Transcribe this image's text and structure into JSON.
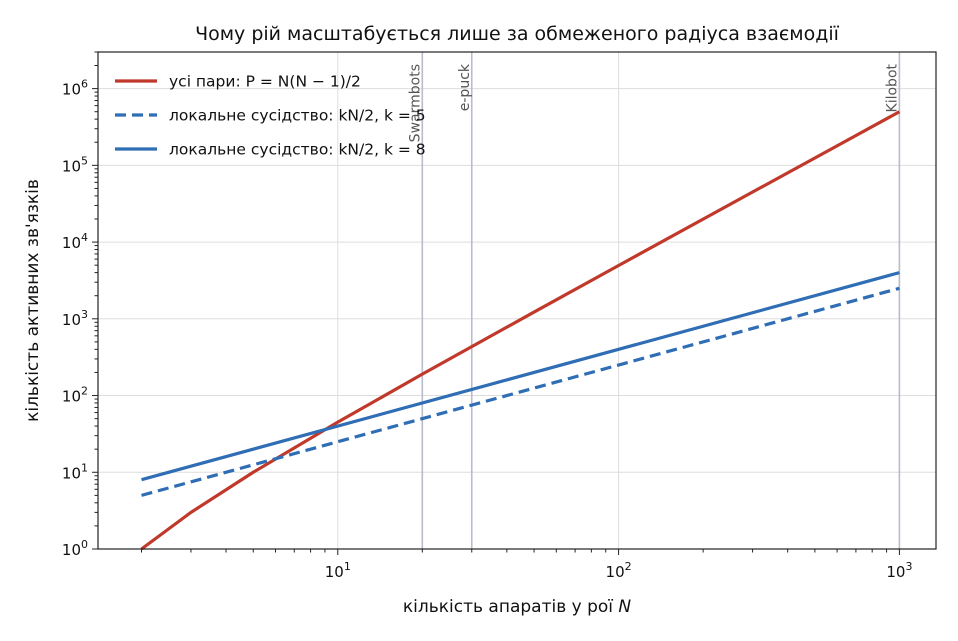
{
  "chart_data": {
    "type": "line",
    "title": "Чому рій масштабується лише за обмеженого радіуса взаємодії",
    "xlabel": "кількість апаратів у рої N",
    "ylabel": "кількість активних зв'язків",
    "xscale": "log",
    "yscale": "log",
    "xlim": [
      1.4,
      1350
    ],
    "ylim": [
      1,
      3000000
    ],
    "x_ticks": [
      10,
      100,
      1000
    ],
    "x_tick_labels": [
      {
        "base": "10",
        "exp": "1"
      },
      {
        "base": "10",
        "exp": "2"
      },
      {
        "base": "10",
        "exp": "3"
      }
    ],
    "y_ticks": [
      1,
      10,
      100,
      1000,
      10000,
      100000,
      1000000
    ],
    "y_tick_labels": [
      {
        "base": "10",
        "exp": "0"
      },
      {
        "base": "10",
        "exp": "1"
      },
      {
        "base": "10",
        "exp": "2"
      },
      {
        "base": "10",
        "exp": "3"
      },
      {
        "base": "10",
        "exp": "4"
      },
      {
        "base": "10",
        "exp": "5"
      },
      {
        "base": "10",
        "exp": "6"
      }
    ],
    "grid": true,
    "legend_position": "top-left",
    "series": [
      {
        "name": "усі пари: P = N(N − 1)/2",
        "color": "#c0392b",
        "dash": "solid",
        "x": [
          2,
          3,
          5,
          10,
          20,
          50,
          100,
          200,
          500,
          1000
        ],
        "values": [
          1,
          3,
          10,
          45,
          190,
          1225,
          4950,
          19900,
          124750,
          499500
        ]
      },
      {
        "name": "локальне сусідство: kN/2, k = 5",
        "color": "#2f6db5",
        "dash": "dashed",
        "x": [
          2,
          1000
        ],
        "values": [
          5,
          2500
        ]
      },
      {
        "name": "локальне сусідство: kN/2, k = 8",
        "color": "#2f6db5",
        "dash": "solid",
        "x": [
          2,
          1000
        ],
        "values": [
          8,
          4000
        ]
      }
    ],
    "reference_lines": [
      {
        "x": 20,
        "label": "Swarmbots"
      },
      {
        "x": 30,
        "label": "e-puck"
      },
      {
        "x": 1000,
        "label": "Kilobot"
      }
    ]
  }
}
